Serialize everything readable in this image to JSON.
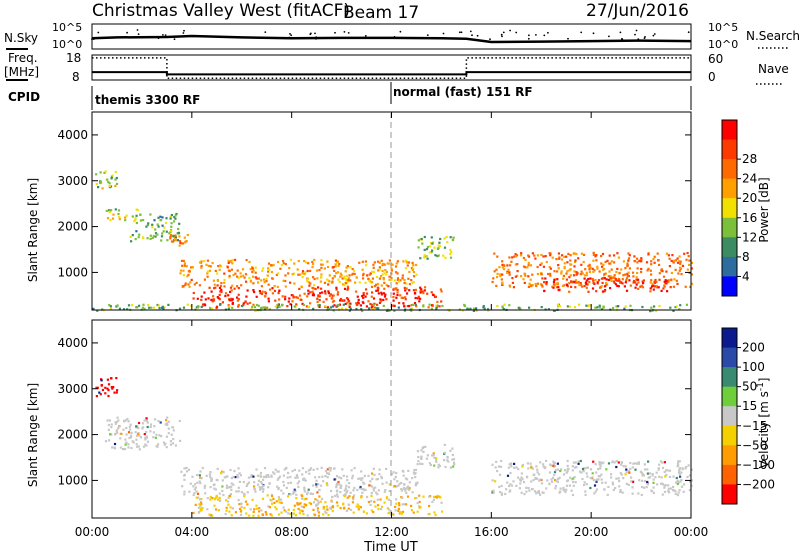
{
  "header": {
    "title": "Christmas Valley West (fitACF)",
    "beam": "Beam 17",
    "date": "27/Jun/2016"
  },
  "top_panels": {
    "nsky_label": "N.Sky",
    "nsky_axis_hi": "10^5",
    "nsky_axis_lo": "10^0",
    "nsearch_label": "N.Search",
    "nsearch_axis_hi": "10^5",
    "nsearch_axis_lo": "10^0",
    "freq_label_1": "Freq.",
    "freq_label_2": "[MHz]",
    "freq_ticks": [
      "18",
      "8"
    ],
    "nave_label": "Nave",
    "nave_ticks": [
      "60",
      "0"
    ],
    "cpid_label": "CPID",
    "cpid_segments": [
      {
        "label": "themis 3300 RF",
        "start_hour": 0
      },
      {
        "label": "normal (fast) 151 RF",
        "start_hour": 12
      }
    ]
  },
  "colors": {
    "power_scale": [
      "#0000ff",
      "#2e6b9e",
      "#3b8c62",
      "#7bbf3a",
      "#f2e000",
      "#ffa000",
      "#ff6a00",
      "#ff3a00",
      "#ff0000"
    ],
    "velocity_scale": [
      "#0b1a8c",
      "#2a4aa8",
      "#3a8a72",
      "#6fcf3a",
      "#c8c8c8",
      "#f4d000",
      "#ff9d00",
      "#ff6200",
      "#ff0000"
    ]
  },
  "chart_data": [
    {
      "type": "line",
      "name": "top-panel",
      "x_range": [
        0,
        24
      ],
      "series": [
        {
          "name": "N.Sky",
          "values_desc": "",
          "hours": [
            0,
            1,
            3,
            4,
            6,
            8,
            10,
            12,
            14,
            15,
            16,
            18,
            20,
            22,
            24
          ],
          "values_log10": [
            2.1,
            2.3,
            2.4,
            2.6,
            2.3,
            2.1,
            2.2,
            2.2,
            2.1,
            2.0,
            1.3,
            1.4,
            1.5,
            1.6,
            1.5
          ]
        },
        {
          "name": "Freq. [MHz]",
          "hours": [
            0,
            3,
            3,
            15,
            15,
            24
          ],
          "values": [
            11.0,
            11.0,
            10.0,
            10.0,
            11.0,
            11.0
          ]
        },
        {
          "name": "Nave",
          "hours": [
            0,
            3,
            3,
            15,
            15,
            24
          ],
          "values": [
            55,
            55,
            2,
            2,
            55,
            55
          ]
        }
      ]
    },
    {
      "type": "heatmap",
      "name": "Power",
      "xlabel": "Time UT",
      "ylabel": "Slant Range [km]",
      "xlim": [
        0,
        24
      ],
      "ylim": [
        180,
        4500
      ],
      "x_ticks": [
        "00:00",
        "04:00",
        "08:00",
        "12:00",
        "16:00",
        "20:00",
        "00:00"
      ],
      "y_ticks": [
        1000,
        2000,
        3000,
        4000
      ],
      "colorbar_label": "Power [dB]",
      "colorbar_ticks": [
        4,
        8,
        12,
        16,
        20,
        24,
        28
      ],
      "colorbar_range": [
        0,
        30
      ],
      "regions": [
        {
          "hours": [
            0.1,
            1.0
          ],
          "range_km": [
            2850,
            3300
          ],
          "value": 12
        },
        {
          "hours": [
            0.5,
            1.8
          ],
          "range_km": [
            2150,
            2400
          ],
          "value": 14
        },
        {
          "hours": [
            1.5,
            3.5
          ],
          "range_km": [
            1700,
            2300
          ],
          "value": 10
        },
        {
          "hours": [
            3.0,
            3.8
          ],
          "range_km": [
            1600,
            1850
          ],
          "value": 22
        },
        {
          "hours": [
            3.5,
            13.0
          ],
          "range_km": [
            700,
            1300
          ],
          "value": 20
        },
        {
          "hours": [
            4.0,
            14.0
          ],
          "range_km": [
            250,
            700
          ],
          "value": 27
        },
        {
          "hours": [
            0.0,
            24.0
          ],
          "range_km": [
            180,
            320
          ],
          "value": 10
        },
        {
          "hours": [
            13.0,
            14.5
          ],
          "range_km": [
            1300,
            1800
          ],
          "value": 12
        },
        {
          "hours": [
            16.0,
            24.0
          ],
          "range_km": [
            700,
            1450
          ],
          "value": 22
        },
        {
          "hours": [
            18.0,
            23.0
          ],
          "range_km": [
            600,
            900
          ],
          "value": 28
        }
      ]
    },
    {
      "type": "heatmap",
      "name": "Velocity",
      "xlabel": "Time UT",
      "ylabel": "Slant Range [km]",
      "xlim": [
        0,
        24
      ],
      "ylim": [
        180,
        4500
      ],
      "x_ticks": [
        "00:00",
        "04:00",
        "08:00",
        "12:00",
        "16:00",
        "20:00",
        "00:00"
      ],
      "y_ticks": [
        1000,
        2000,
        3000,
        4000
      ],
      "colorbar_label": "Velocity [m s^-1]",
      "colorbar_ticks": [
        200,
        100,
        50,
        15,
        -15,
        -50,
        -100,
        -200
      ],
      "regions": [
        {
          "hours": [
            0.1,
            1.0
          ],
          "range_km": [
            2850,
            3300
          ],
          "value": -200
        },
        {
          "hours": [
            0.5,
            3.5
          ],
          "range_km": [
            1700,
            2400
          ],
          "value": 0
        },
        {
          "hours": [
            3.5,
            13.0
          ],
          "range_km": [
            700,
            1300
          ],
          "value": 0
        },
        {
          "hours": [
            4.0,
            14.0
          ],
          "range_km": [
            250,
            700
          ],
          "value": -50
        },
        {
          "hours": [
            13.0,
            14.5
          ],
          "range_km": [
            1300,
            1800
          ],
          "value": 0
        },
        {
          "hours": [
            16.0,
            24.0
          ],
          "range_km": [
            700,
            1450
          ],
          "value": 0
        }
      ]
    }
  ]
}
